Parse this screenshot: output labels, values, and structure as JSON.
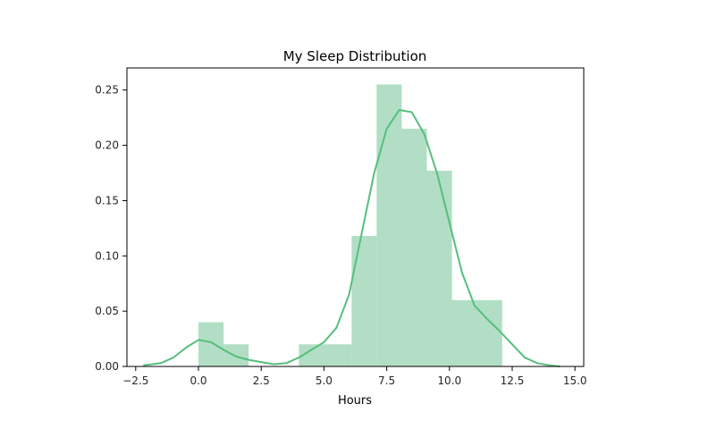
{
  "chart_data": {
    "type": "bar",
    "title": "My Sleep Distribution",
    "xlabel": "Hours",
    "ylabel": "",
    "xlim": [
      -2.5,
      15.0
    ],
    "ylim": [
      0.0,
      0.27
    ],
    "xticks": [
      -2.5,
      0.0,
      2.5,
      5.0,
      7.5,
      10.0,
      12.5,
      15.0
    ],
    "xtick_labels": [
      "−2.5",
      "0.0",
      "2.5",
      "5.0",
      "7.5",
      "10.0",
      "12.5",
      "15.0"
    ],
    "yticks": [
      0.0,
      0.05,
      0.1,
      0.15,
      0.2,
      0.25
    ],
    "ytick_labels": [
      "0.00",
      "0.05",
      "0.10",
      "0.15",
      "0.20",
      "0.25"
    ],
    "grid": false,
    "histogram": {
      "bins": [
        {
          "x0": 0.0,
          "x1": 1.0,
          "density": 0.04
        },
        {
          "x0": 1.0,
          "x1": 2.0,
          "density": 0.02
        },
        {
          "x0": 4.0,
          "x1": 6.1,
          "density": 0.02
        },
        {
          "x0": 6.1,
          "x1": 7.1,
          "density": 0.118
        },
        {
          "x0": 7.1,
          "x1": 8.1,
          "density": 0.255
        },
        {
          "x0": 8.1,
          "x1": 9.1,
          "density": 0.215
        },
        {
          "x0": 9.1,
          "x1": 10.1,
          "density": 0.177
        },
        {
          "x0": 10.1,
          "x1": 12.1,
          "density": 0.06
        }
      ],
      "color": "#b1dec4"
    },
    "kde": {
      "x": [
        -2.2,
        -1.5,
        -1.0,
        -0.5,
        0.0,
        0.5,
        1.0,
        1.5,
        2.0,
        2.5,
        3.0,
        3.5,
        4.0,
        4.5,
        5.0,
        5.5,
        6.0,
        6.5,
        7.0,
        7.5,
        8.0,
        8.5,
        9.0,
        9.5,
        10.0,
        10.5,
        11.0,
        11.5,
        12.0,
        12.5,
        13.0,
        13.5,
        14.0,
        14.4
      ],
      "y": [
        0.001,
        0.003,
        0.008,
        0.017,
        0.024,
        0.022,
        0.015,
        0.009,
        0.006,
        0.004,
        0.002,
        0.003,
        0.008,
        0.015,
        0.022,
        0.035,
        0.065,
        0.12,
        0.175,
        0.215,
        0.232,
        0.23,
        0.21,
        0.175,
        0.13,
        0.085,
        0.055,
        0.043,
        0.032,
        0.02,
        0.008,
        0.003,
        0.001,
        0.0
      ],
      "color": "#55bf7d"
    }
  }
}
